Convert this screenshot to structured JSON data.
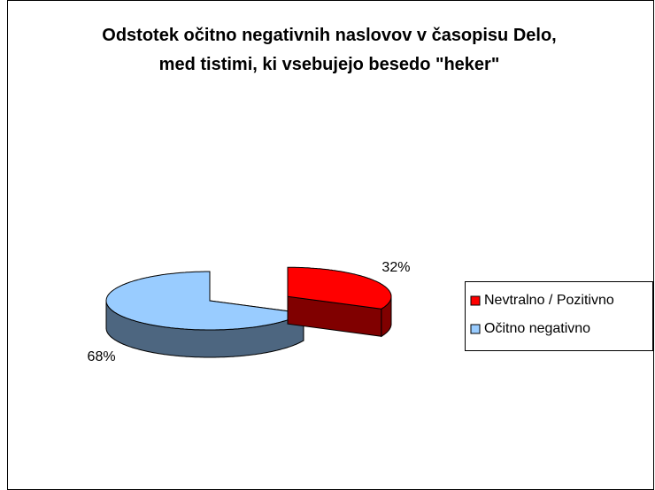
{
  "chart_data": {
    "type": "pie",
    "title": "Odstotek očitno negativnih naslovov v časopisu Delo, med tistimi, ki vsebujejo besedo \"heker\"",
    "categories": [
      "Nevtralno / Pozitivno",
      "Očitno negativno"
    ],
    "values": [
      32,
      68
    ],
    "value_labels": [
      "32%",
      "68%"
    ],
    "colors": [
      "#ff0000",
      "#99ccff"
    ],
    "legend": "right"
  }
}
